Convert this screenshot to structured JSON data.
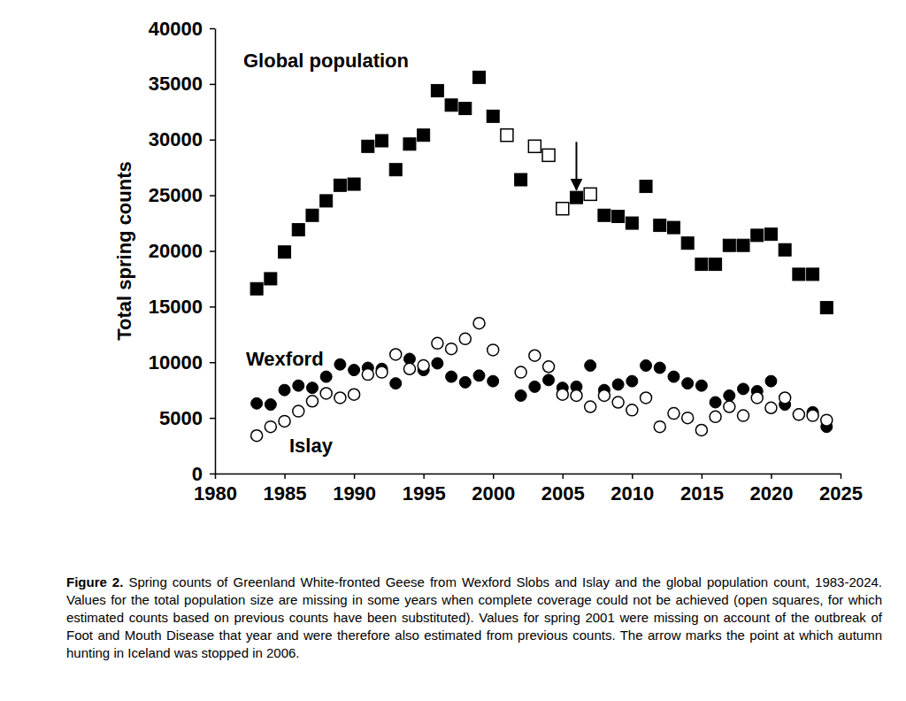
{
  "chart_data": {
    "type": "scatter",
    "y_label": "Total spring counts",
    "x": [
      1983,
      1984,
      1985,
      1986,
      1987,
      1988,
      1989,
      1990,
      1991,
      1992,
      1993,
      1994,
      1995,
      1996,
      1997,
      1998,
      1999,
      2000,
      2001,
      2002,
      2003,
      2004,
      2005,
      2006,
      2007,
      2008,
      2009,
      2010,
      2011,
      2012,
      2013,
      2014,
      2015,
      2016,
      2017,
      2018,
      2019,
      2020,
      2021,
      2022,
      2023,
      2024
    ],
    "series": [
      {
        "name": "Global population",
        "color": "#000000",
        "marker": "square",
        "values": [
          16600,
          17500,
          19900,
          21900,
          23200,
          24500,
          25900,
          26000,
          29400,
          29900,
          27300,
          29600,
          30400,
          34400,
          33100,
          32800,
          35600,
          32100,
          null,
          26400,
          null,
          null,
          null,
          24800,
          null,
          23200,
          23100,
          22500,
          25800,
          22300,
          22100,
          20700,
          18800,
          18800,
          20500,
          20500,
          21400,
          21500,
          20100,
          17900,
          17900,
          14900
        ]
      },
      {
        "color": "#000000",
        "marker": "square-open",
        "values": [
          null,
          null,
          null,
          null,
          null,
          null,
          null,
          null,
          null,
          null,
          null,
          null,
          null,
          null,
          null,
          null,
          null,
          null,
          30400,
          null,
          29400,
          28600,
          23800,
          null,
          25100,
          null,
          null,
          null,
          null,
          null,
          null,
          null,
          null,
          null,
          null,
          null,
          null,
          null,
          null,
          null,
          null,
          null
        ]
      },
      {
        "name": "Wexford",
        "color": "#000000",
        "marker": "circle",
        "values": [
          6300,
          6200,
          7500,
          7900,
          7700,
          8700,
          9800,
          9300,
          9500,
          9400,
          8100,
          10300,
          9300,
          9900,
          8700,
          8200,
          8800,
          8300,
          null,
          7000,
          7800,
          8400,
          7700,
          7800,
          9700,
          7500,
          8000,
          8300,
          9700,
          9500,
          8700,
          8100,
          7900,
          6400,
          7000,
          7600,
          7400,
          8300,
          6200,
          5300,
          5500,
          4200
        ]
      },
      {
        "name": "Islay",
        "color": "#000000",
        "marker": "circle-open",
        "values": [
          3400,
          4200,
          4700,
          5600,
          6500,
          7200,
          6800,
          7100,
          8900,
          9100,
          10700,
          9400,
          9700,
          11700,
          11200,
          12100,
          13500,
          11100,
          null,
          9100,
          10600,
          9600,
          7100,
          7000,
          6000,
          7000,
          6400,
          5700,
          6800,
          4200,
          5400,
          5000,
          3900,
          5100,
          6000,
          5200,
          6800,
          5900,
          6800,
          5300,
          5200,
          4800
        ]
      }
    ],
    "xlim": [
      1980,
      2025
    ],
    "xticks": [
      1980,
      1985,
      1990,
      1995,
      2000,
      2005,
      2010,
      2015,
      2020,
      2025
    ],
    "ylim": [
      0,
      40000
    ],
    "yticks": [
      0,
      5000,
      10000,
      15000,
      20000,
      25000,
      30000,
      35000,
      40000
    ],
    "grid": false,
    "arrow": {
      "x": 2006,
      "y_start": 29800,
      "y_end": 25500
    },
    "caption": {
      "label": "Figure 2.",
      "text": "Spring counts of Greenland White-fronted Geese from Wexford Slobs and Islay and the global population count, 1983-2024. Values for the total population size are missing in some years when complete coverage could not be achieved (open squares, for which estimated counts based on previous counts have been substituted). Values for spring 2001 were missing on account of the outbreak of Foot and Mouth Disease that year and were therefore also estimated from previous counts. The arrow marks the point at which autumn hunting in Iceland was stopped in 2006."
    }
  }
}
